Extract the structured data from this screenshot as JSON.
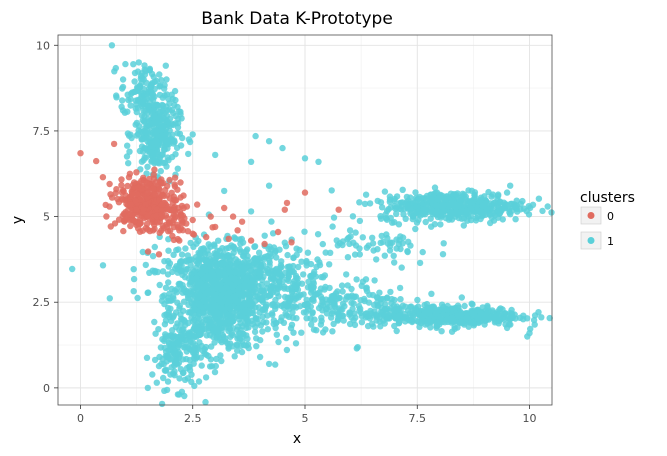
{
  "chart_data": {
    "type": "scatter",
    "title": "Bank Data K-Prototype",
    "xlabel": "x",
    "ylabel": "y",
    "xlim": [
      -0.5,
      10.5
    ],
    "ylim": [
      -0.5,
      10.3
    ],
    "xticks": [
      0,
      2.5,
      5,
      7.5,
      10
    ],
    "xtick_labels": [
      "0",
      "2.5",
      "5",
      "7.5",
      "10"
    ],
    "yticks": [
      0,
      2.5,
      5,
      7.5,
      10
    ],
    "ytick_labels": [
      "0",
      "2.5",
      "5",
      "7.5",
      "10"
    ],
    "grid": true,
    "legend_title": "clusters",
    "legend_position": "right",
    "series": [
      {
        "name": "0",
        "color": "#E06B5F",
        "clusters": [
          {
            "cx": 1.4,
            "cy": 5.4,
            "sx": 0.3,
            "sy": 0.35,
            "n": 320
          },
          {
            "cx": 2.0,
            "cy": 5.05,
            "sx": 0.22,
            "sy": 0.4,
            "n": 80
          }
        ],
        "points": [
          [
            0.0,
            6.85
          ],
          [
            0.35,
            6.62
          ],
          [
            0.75,
            7.12
          ],
          [
            0.5,
            6.15
          ],
          [
            0.65,
            5.95
          ],
          [
            0.8,
            5.8
          ],
          [
            1.1,
            6.25
          ],
          [
            2.3,
            5.25
          ],
          [
            2.6,
            5.35
          ],
          [
            3.2,
            5.25
          ],
          [
            3.4,
            5.0
          ],
          [
            3.0,
            4.7
          ],
          [
            3.6,
            4.85
          ],
          [
            4.55,
            5.2
          ],
          [
            4.6,
            5.4
          ],
          [
            5.0,
            5.7
          ],
          [
            5.75,
            5.2
          ],
          [
            4.1,
            4.2
          ],
          [
            3.8,
            4.3
          ],
          [
            3.3,
            4.35
          ],
          [
            2.2,
            4.6
          ],
          [
            2.5,
            4.9
          ],
          [
            2.8,
            4.4
          ],
          [
            1.75,
            3.9
          ],
          [
            2.5,
            4.5
          ],
          [
            2.9,
            5.0
          ],
          [
            3.5,
            4.6
          ],
          [
            4.4,
            4.55
          ],
          [
            4.7,
            4.25
          ],
          [
            2.2,
            4.3
          ]
        ]
      },
      {
        "name": "1",
        "color": "#5AD0D9",
        "clusters": [
          {
            "cx": 3.1,
            "cy": 2.6,
            "sx": 0.55,
            "sy": 0.75,
            "n": 900
          },
          {
            "cx": 3.2,
            "cy": 3.4,
            "sx": 0.9,
            "sy": 0.45,
            "n": 200
          },
          {
            "cx": 2.2,
            "cy": 1.0,
            "sx": 0.3,
            "sy": 0.5,
            "n": 150
          },
          {
            "cx": 1.7,
            "cy": 7.4,
            "sx": 0.25,
            "sy": 0.55,
            "n": 280
          },
          {
            "cx": 1.4,
            "cy": 8.6,
            "sx": 0.25,
            "sy": 0.4,
            "n": 100
          },
          {
            "cx": 8.3,
            "cy": 5.3,
            "sx": 0.8,
            "sy": 0.22,
            "n": 450
          },
          {
            "cx": 8.2,
            "cy": 2.1,
            "sx": 0.8,
            "sy": 0.15,
            "n": 400
          },
          {
            "cx": 5.6,
            "cy": 2.4,
            "sx": 0.9,
            "sy": 0.4,
            "n": 250
          },
          {
            "cx": 4.5,
            "cy": 3.2,
            "sx": 0.6,
            "sy": 0.5,
            "n": 150
          },
          {
            "cx": 6.5,
            "cy": 4.1,
            "sx": 0.7,
            "sy": 0.3,
            "n": 60
          }
        ],
        "points": [
          [
            0.7,
            10.0
          ],
          [
            1.0,
            9.45
          ],
          [
            1.3,
            9.5
          ],
          [
            1.45,
            9.25
          ],
          [
            0.95,
            9.0
          ],
          [
            3.0,
            6.8
          ],
          [
            2.5,
            7.4
          ],
          [
            3.8,
            6.6
          ],
          [
            4.2,
            7.2
          ],
          [
            4.5,
            7.0
          ],
          [
            5.0,
            6.7
          ],
          [
            5.3,
            6.6
          ],
          [
            3.9,
            7.35
          ],
          [
            4.2,
            5.9
          ],
          [
            3.2,
            5.75
          ],
          [
            3.8,
            5.15
          ],
          [
            9.0,
            1.85
          ],
          [
            9.95,
            1.5
          ],
          [
            10.0,
            1.6
          ],
          [
            9.5,
            1.75
          ],
          [
            9.3,
            5.6
          ],
          [
            9.5,
            5.7
          ],
          [
            1.5,
            0.0
          ],
          [
            1.7,
            0.15
          ],
          [
            1.9,
            0.5
          ],
          [
            3.3,
            1.2
          ],
          [
            4.0,
            0.9
          ],
          [
            4.2,
            0.7
          ],
          [
            4.8,
            1.3
          ],
          [
            5.2,
            1.7
          ]
        ]
      }
    ]
  }
}
